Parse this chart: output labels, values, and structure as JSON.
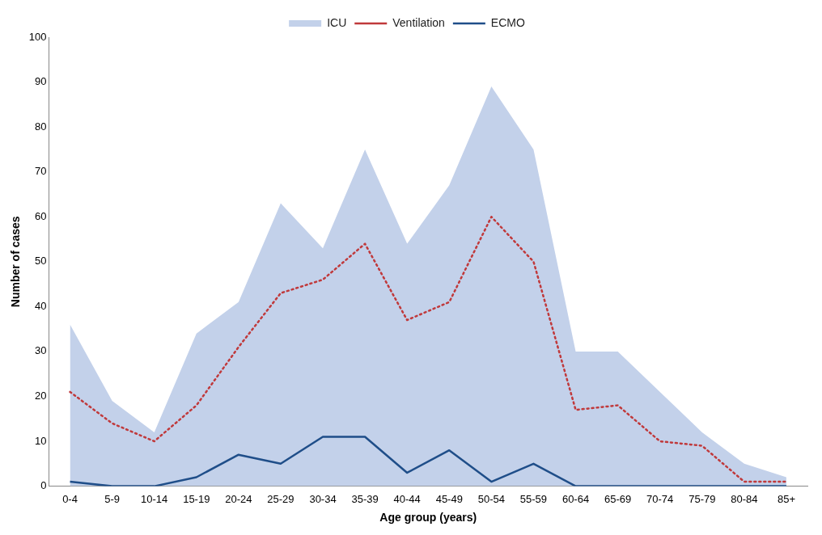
{
  "chart_data": {
    "type": "line",
    "xlabel": "Age group (years)",
    "ylabel": "Number of cases",
    "categories": [
      "0-4",
      "5-9",
      "10-14",
      "15-19",
      "20-24",
      "25-29",
      "30-34",
      "35-39",
      "40-44",
      "45-49",
      "50-54",
      "55-59",
      "60-64",
      "65-69",
      "70-74",
      "75-79",
      "80-84",
      "85+"
    ],
    "series": [
      {
        "name": "ICU",
        "type": "area",
        "color": "#c3d1ea",
        "values": [
          36,
          19,
          12,
          34,
          41,
          63,
          53,
          75,
          54,
          67,
          89,
          75,
          30,
          30,
          21,
          12,
          5,
          2
        ]
      },
      {
        "name": "Ventilation",
        "type": "line",
        "line_style": "dotted",
        "color": "#c0393b",
        "values": [
          21,
          14,
          10,
          18,
          31,
          43,
          46,
          54,
          37,
          41,
          60,
          50,
          17,
          18,
          10,
          9,
          1,
          1
        ]
      },
      {
        "name": "ECMO",
        "type": "line",
        "line_style": "solid",
        "color": "#1f4e89",
        "values": [
          1,
          0,
          0,
          2,
          7,
          5,
          11,
          11,
          3,
          8,
          1,
          5,
          0,
          0,
          0,
          0,
          0,
          0
        ]
      }
    ],
    "ylim": [
      0,
      100
    ],
    "yticks": [
      0,
      10,
      20,
      30,
      40,
      50,
      60,
      70,
      80,
      90,
      100
    ],
    "grid": false,
    "legend": "top",
    "marker": "none"
  }
}
